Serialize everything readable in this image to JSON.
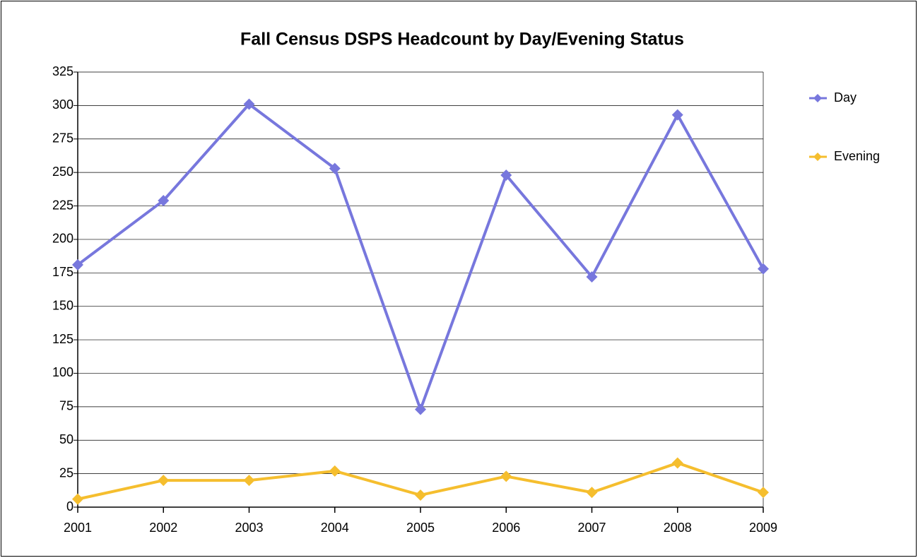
{
  "chart_data": {
    "type": "line",
    "title": "Fall Census DSPS Headcount by Day/Evening Status",
    "categories": [
      "2001",
      "2002",
      "2003",
      "2004",
      "2005",
      "2006",
      "2007",
      "2008",
      "2009"
    ],
    "series": [
      {
        "name": "Day",
        "color": "#7777dd",
        "values": [
          181,
          229,
          301,
          253,
          73,
          248,
          172,
          293,
          178
        ]
      },
      {
        "name": "Evening",
        "color": "#f5be2e",
        "values": [
          6,
          20,
          20,
          27,
          9,
          23,
          11,
          33,
          11
        ]
      }
    ],
    "ylim": [
      0,
      325
    ],
    "yticks": [
      0,
      25,
      50,
      75,
      100,
      125,
      150,
      175,
      200,
      225,
      250,
      275,
      300,
      325
    ],
    "grid": true,
    "legend": "right"
  }
}
